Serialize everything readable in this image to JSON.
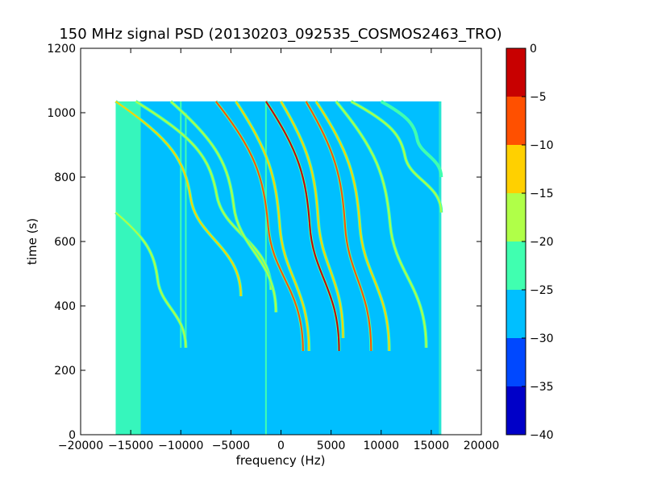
{
  "chart_data": {
    "type": "heatmap",
    "title": "150 MHz signal PSD (20130203_092535_COSMOS2463_TRO)",
    "xlabel": "frequency (Hz)",
    "ylabel": "time (s)",
    "xlim": [
      -20000,
      20000
    ],
    "ylim": [
      0,
      1200
    ],
    "xticks": [
      -20000,
      -15000,
      -10000,
      -5000,
      0,
      5000,
      10000,
      15000,
      20000
    ],
    "yticks": [
      0,
      200,
      400,
      600,
      800,
      1000,
      1200
    ],
    "data_extent": {
      "x": [
        -16500,
        16000
      ],
      "y": [
        0,
        1035
      ]
    },
    "colorbar": {
      "levels": [
        -40,
        -35,
        -30,
        -25,
        -20,
        -15,
        -10,
        -5,
        0
      ],
      "colors": [
        "#0000c8",
        "#0048ff",
        "#00bfff",
        "#40ffb0",
        "#b0ff48",
        "#ffd000",
        "#ff5000",
        "#c80000"
      ],
      "tick_labels": [
        "0",
        "−5",
        "−10",
        "−15",
        "−20",
        "−25",
        "−30",
        "−35",
        "−40"
      ]
    },
    "background_level_color": "#00bfff",
    "noise_band": {
      "x": [
        -16500,
        -14000
      ],
      "color": "#40ffb0"
    },
    "vertical_lines": [
      {
        "x": -10000,
        "y0": 270,
        "y1": 1035,
        "color": "#40ffb0"
      },
      {
        "x": -1500,
        "y0": 0,
        "y1": 1035,
        "color": "#40ffb0"
      },
      {
        "x": -9500,
        "y0": 270,
        "y1": 1000,
        "color": "#40ffb0"
      }
    ],
    "tracks": [
      {
        "x_start": -16500,
        "x_end": -9500,
        "y_top": 690,
        "y_bottom": 270,
        "color": "#b0ff48"
      },
      {
        "x_start": -16500,
        "x_end": -4000,
        "y_top": 1035,
        "y_bottom": 430,
        "color": "#ffd000"
      },
      {
        "x_start": -14500,
        "x_end": -1000,
        "y_top": 1035,
        "y_bottom": 450,
        "color": "#b0ff48"
      },
      {
        "x_start": -11000,
        "x_end": -500,
        "y_top": 1035,
        "y_bottom": 380,
        "color": "#b0ff48"
      },
      {
        "x_start": -6500,
        "x_end": 2200,
        "y_top": 1035,
        "y_bottom": 260,
        "color": "#ff5000"
      },
      {
        "x_start": -4500,
        "x_end": 2800,
        "y_top": 1035,
        "y_bottom": 260,
        "color": "#ffd000"
      },
      {
        "x_start": -1500,
        "x_end": 5800,
        "y_top": 1035,
        "y_bottom": 260,
        "color": "#c80000"
      },
      {
        "x_start": 0,
        "x_end": 6200,
        "y_top": 1035,
        "y_bottom": 300,
        "color": "#ffd000"
      },
      {
        "x_start": 2500,
        "x_end": 9000,
        "y_top": 1035,
        "y_bottom": 260,
        "color": "#ff5000"
      },
      {
        "x_start": 3500,
        "x_end": 10800,
        "y_top": 1035,
        "y_bottom": 260,
        "color": "#ffd000"
      },
      {
        "x_start": 5500,
        "x_end": 14500,
        "y_top": 1035,
        "y_bottom": 270,
        "color": "#b0ff48"
      },
      {
        "x_start": 7000,
        "x_end": 16000,
        "y_top": 1035,
        "y_bottom": 690,
        "color": "#b0ff48"
      },
      {
        "x_start": 10000,
        "x_end": 16000,
        "y_top": 1035,
        "y_bottom": 800,
        "color": "#40ffb0"
      }
    ],
    "grid": false,
    "legend": "colorbar-right"
  }
}
